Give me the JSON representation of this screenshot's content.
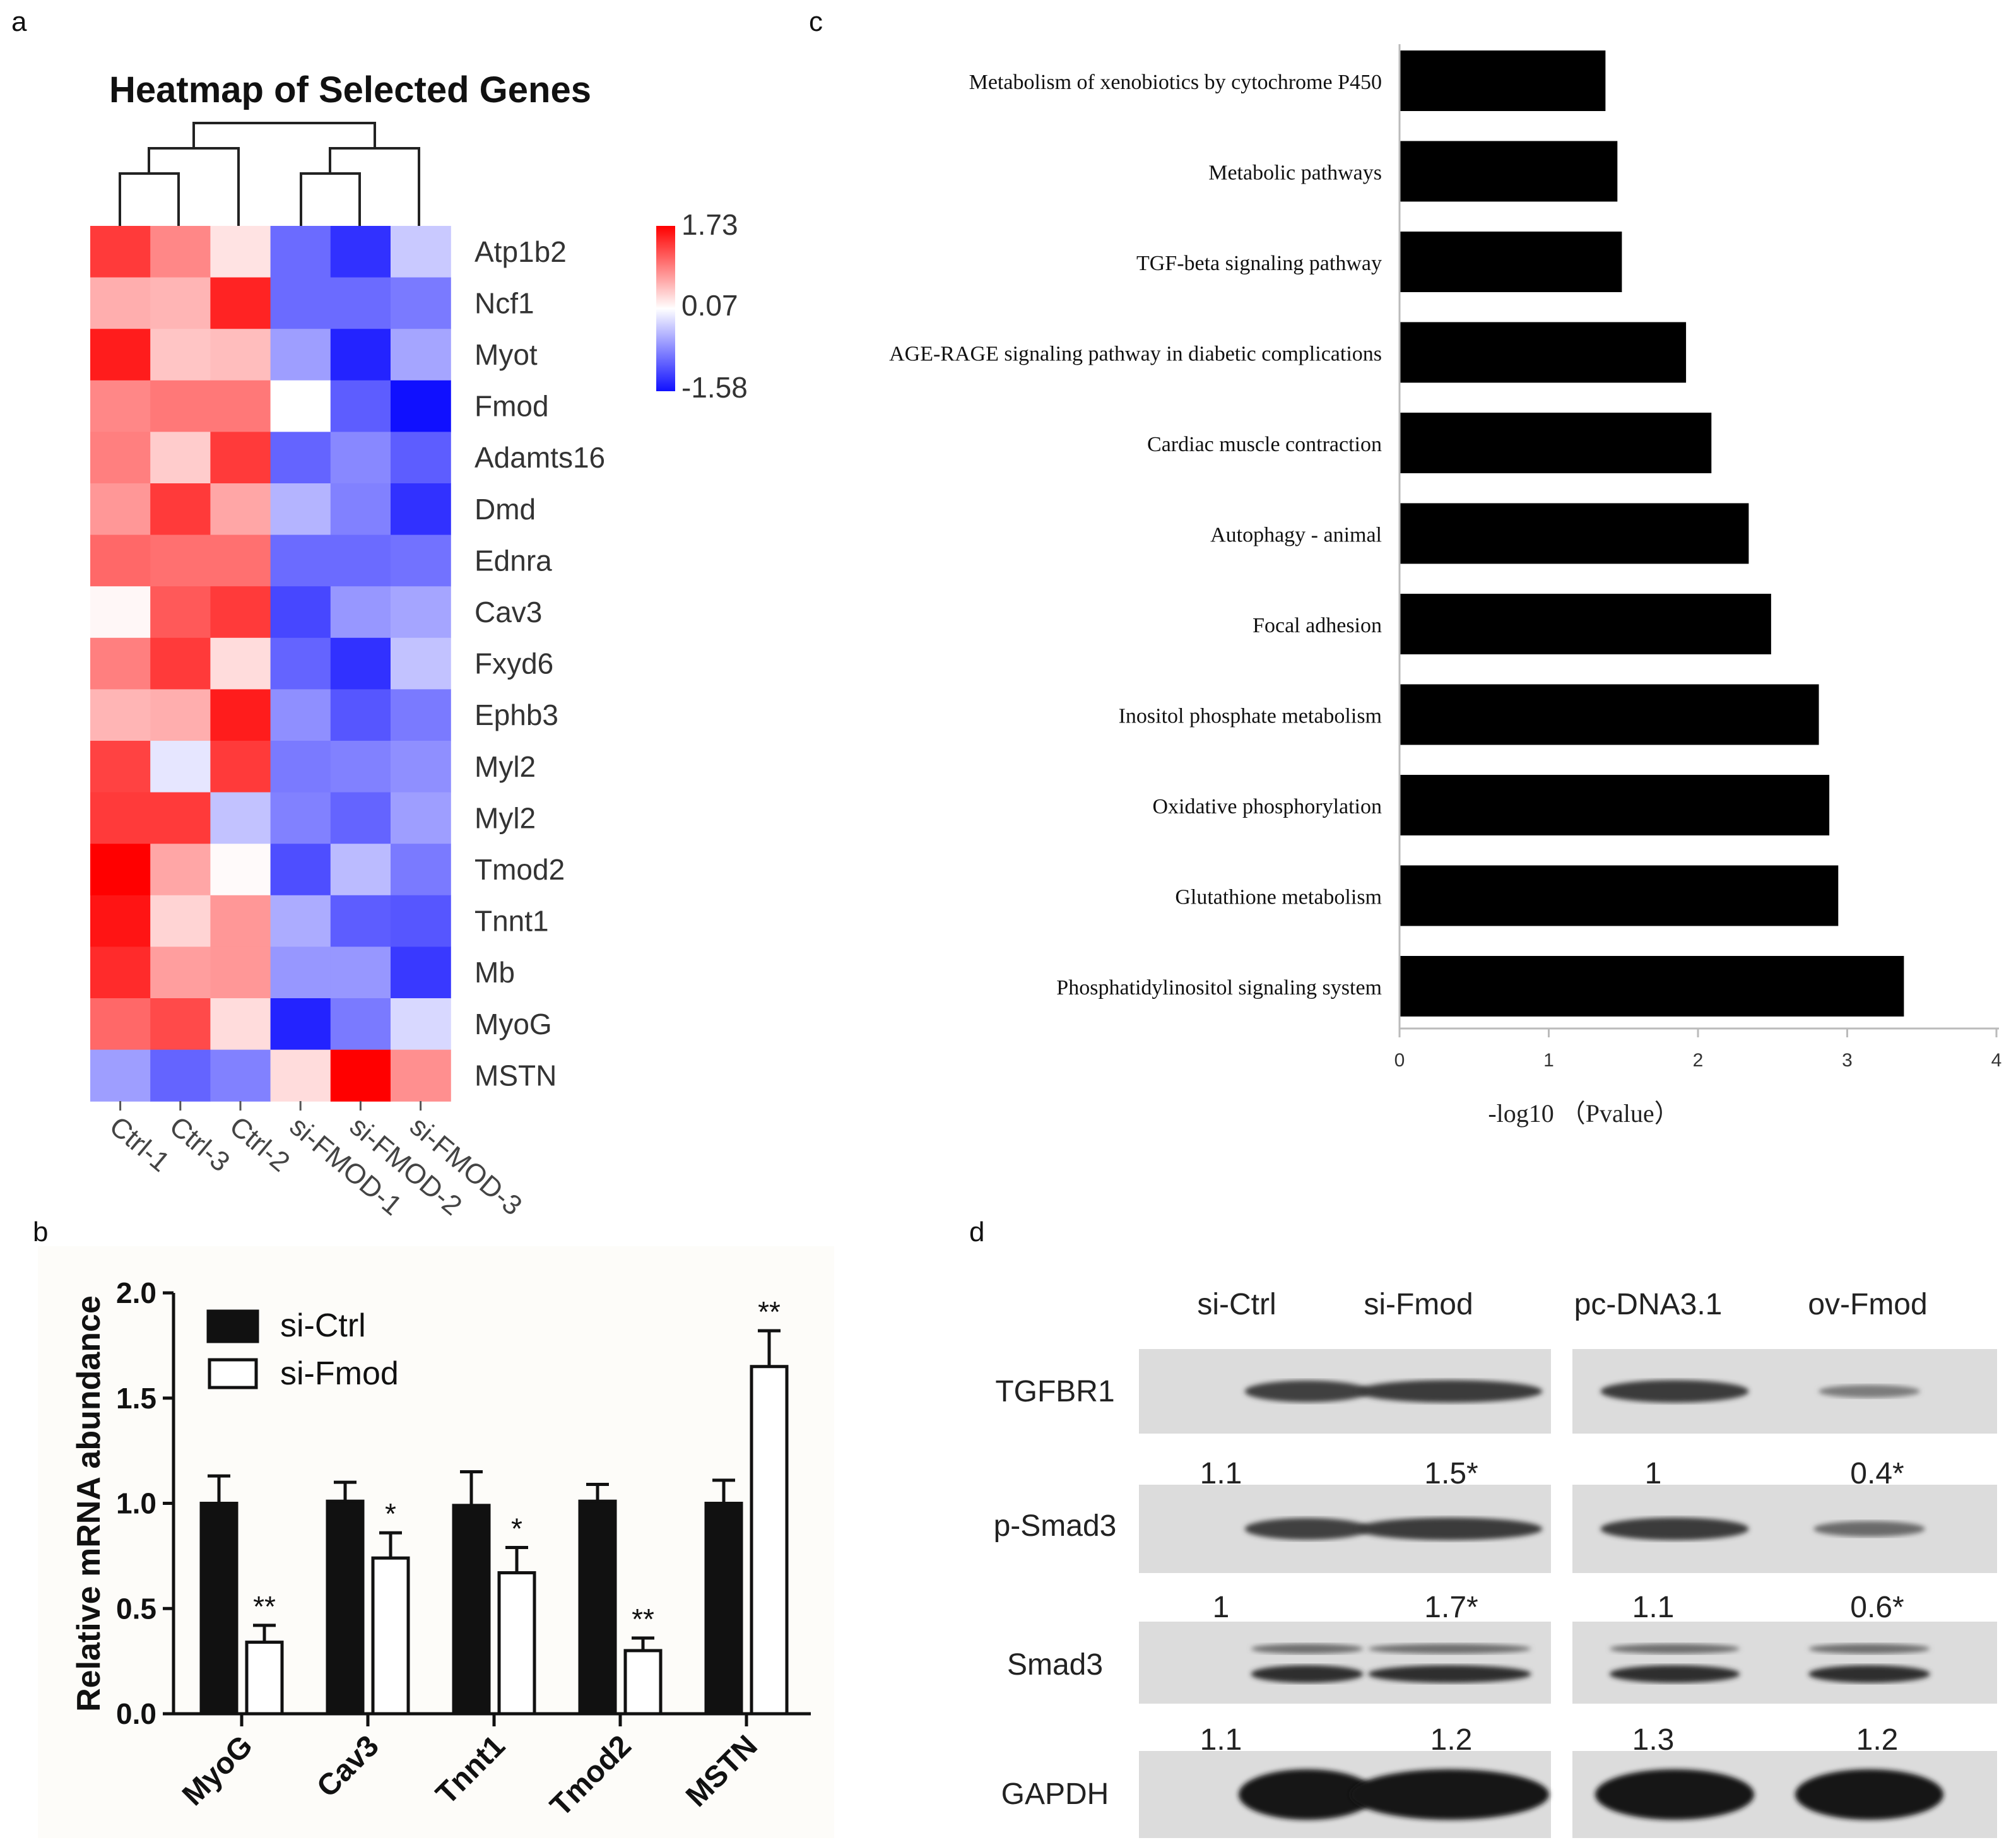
{
  "panel_labels": {
    "a": "a",
    "b": "b",
    "c": "c",
    "d": "d"
  },
  "chart_data": [
    {
      "type": "heatmap",
      "panel": "a",
      "title": "Heatmap of Selected Genes",
      "columns": [
        "Ctrl-1",
        "Ctrl-3",
        "Ctrl-2",
        "si-FMOD-1",
        "si-FMOD-2",
        "si-FMOD-3"
      ],
      "rows": [
        "Atp1b2",
        "Ncf1",
        "Myot",
        "Fmod",
        "Adamts16",
        "Dmd",
        "Ednra",
        "Cav3",
        "Fxyd6",
        "Ephb3",
        "Myl2",
        "Myl2",
        "Tmod2",
        "Tnnt1",
        "Mb",
        "MyoG",
        "MSTN"
      ],
      "values": [
        [
          1.35,
          0.85,
          0.25,
          -0.95,
          -1.35,
          -0.3
        ],
        [
          0.6,
          0.55,
          1.5,
          -0.95,
          -0.95,
          -0.85
        ],
        [
          1.55,
          0.45,
          0.5,
          -0.6,
          -1.45,
          -0.55
        ],
        [
          0.85,
          0.95,
          0.95,
          0.07,
          -1.05,
          -1.58
        ],
        [
          0.9,
          0.4,
          1.35,
          -1.0,
          -0.75,
          -1.05
        ],
        [
          0.75,
          1.35,
          0.65,
          -0.45,
          -0.8,
          -1.35
        ],
        [
          1.05,
          1.0,
          1.0,
          -0.95,
          -0.95,
          -0.9
        ],
        [
          0.12,
          1.15,
          1.35,
          -1.2,
          -0.65,
          -0.55
        ],
        [
          0.9,
          1.35,
          0.3,
          -1.0,
          -1.35,
          -0.35
        ],
        [
          0.55,
          0.6,
          1.55,
          -0.7,
          -1.1,
          -0.85
        ],
        [
          1.3,
          -0.1,
          1.35,
          -0.85,
          -0.8,
          -0.7
        ],
        [
          1.35,
          1.35,
          -0.35,
          -0.8,
          -1.0,
          -0.6
        ],
        [
          1.73,
          0.65,
          0.1,
          -1.15,
          -0.4,
          -0.85
        ],
        [
          1.6,
          0.35,
          0.75,
          -0.5,
          -1.05,
          -1.1
        ],
        [
          1.45,
          0.7,
          0.75,
          -0.65,
          -0.65,
          -1.3
        ],
        [
          1.05,
          1.25,
          0.3,
          -1.45,
          -0.85,
          -0.2
        ],
        [
          -0.6,
          -1.0,
          -0.8,
          0.3,
          1.73,
          0.8
        ]
      ],
      "colorbar": {
        "min": -1.58,
        "mid": 0.07,
        "max": 1.73,
        "labels": [
          "1.73",
          "0.07",
          "-1.58"
        ]
      },
      "colors": {
        "low": "#1010ff",
        "mid": "#ffffff",
        "high": "#ff0000"
      }
    },
    {
      "type": "bar",
      "panel": "b",
      "categories": [
        "MyoG",
        "Cav3",
        "Tnnt1",
        "Tmod2",
        "MSTN"
      ],
      "series": [
        {
          "name": "si-Ctrl",
          "values": [
            1.0,
            1.01,
            0.99,
            1.01,
            1.0
          ],
          "errors": [
            0.13,
            0.09,
            0.16,
            0.08,
            0.11
          ],
          "fill": "#111111"
        },
        {
          "name": "si-Fmod",
          "values": [
            0.34,
            0.74,
            0.67,
            0.3,
            1.65
          ],
          "errors": [
            0.08,
            0.12,
            0.12,
            0.06,
            0.17
          ],
          "fill": "#ffffff"
        }
      ],
      "significance": [
        "**",
        "*",
        "*",
        "**",
        "**"
      ],
      "ylabel": "Relative  mRNA abundance",
      "ylim": [
        0,
        2.0
      ],
      "yticks": [
        0.0,
        0.5,
        1.0,
        1.5,
        2.0
      ],
      "ytick_labels": [
        "0.0",
        "0.5",
        "1.0",
        "1.5",
        "2.0"
      ],
      "legend": "top-left"
    },
    {
      "type": "bar",
      "orientation": "horizontal",
      "panel": "c",
      "categories": [
        "Metabolism of xenobiotics by cytochrome P450",
        "Metabolic pathways",
        "TGF-beta signaling pathway",
        "AGE-RAGE signaling pathway in diabetic complications",
        "Cardiac muscle contraction",
        "Autophagy - animal",
        "Focal adhesion",
        "Inositol phosphate metabolism",
        "Oxidative phosphorylation",
        "Glutathione metabolism",
        "Phosphatidylinositol signaling system"
      ],
      "values": [
        1.38,
        1.46,
        1.49,
        1.92,
        2.09,
        2.34,
        2.49,
        2.81,
        2.88,
        2.94,
        3.38
      ],
      "xlabel": "-log10 （Pvalue）",
      "xlim": [
        0,
        4
      ],
      "xticks": [
        0,
        1,
        2,
        3,
        4
      ],
      "xtick_labels": [
        "0",
        "1",
        "2",
        "3",
        "4"
      ],
      "bar_color": "#000000"
    }
  ],
  "western_blot": {
    "columns": [
      "si-Ctrl",
      "si-Fmod",
      "pc-DNA3.1",
      "ov-Fmod"
    ],
    "rows": [
      {
        "name": "TGFBR1",
        "intensity": [
          0.8,
          0.85,
          0.85,
          0.3
        ],
        "quant": [
          "1.1",
          "1.5*",
          "1",
          "0.4*"
        ]
      },
      {
        "name": "p-Smad3",
        "intensity": [
          0.8,
          0.85,
          0.85,
          0.45
        ],
        "quant": [
          "1",
          "1.7*",
          "1.1",
          "0.6*"
        ]
      },
      {
        "name": "Smad3",
        "intensity": [
          0.6,
          0.6,
          0.6,
          0.6
        ],
        "quant": [
          "1.1",
          "1.2",
          "1.3",
          "1.2"
        ],
        "double": true
      },
      {
        "name": "GAPDH",
        "intensity": [
          1.0,
          1.0,
          1.0,
          1.0
        ],
        "quant": [],
        "thick": true
      }
    ]
  }
}
